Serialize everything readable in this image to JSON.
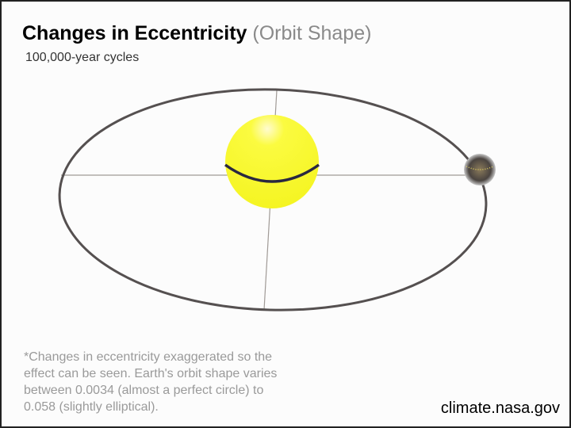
{
  "header": {
    "title": "Changes in Eccentricity",
    "title_suffix": "(Orbit Shape)",
    "subtitle": "100,000-year cycles"
  },
  "diagram": {
    "sun_color": "#f8f830",
    "orbit_color": "#555050",
    "axis_color": "#a09a96"
  },
  "footnote": "*Changes in eccentricity exaggerated so the effect can be seen. Earth's orbit shape varies between 0.0034 (almost a perfect circle) to 0.058 (slightly elliptical).",
  "credit": "climate.nasa.gov"
}
